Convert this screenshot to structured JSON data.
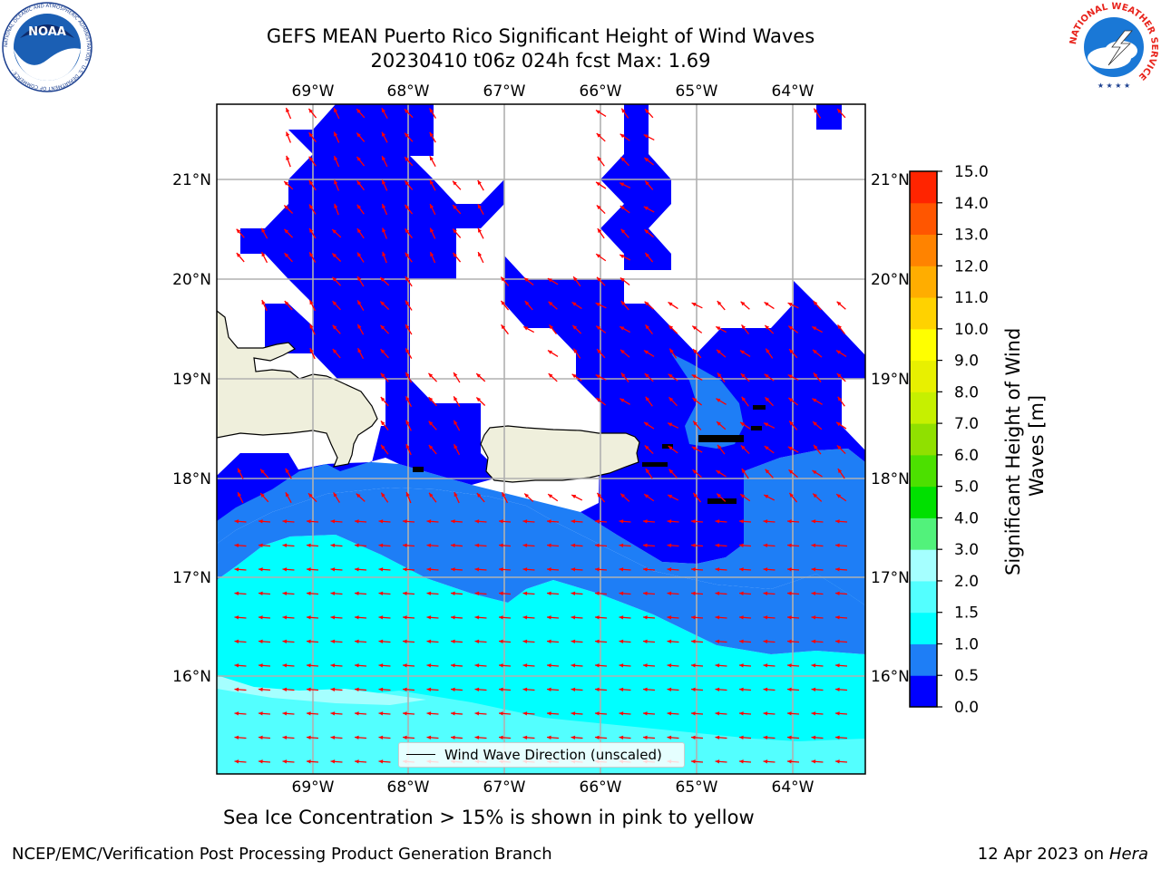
{
  "title_line1": "GEFS MEAN Puerto Rico Significant Height of Wind Waves",
  "title_line2": "20230410 t06z 024h fcst   Max: 1.69",
  "logos": {
    "noaa_text": "NOAA",
    "noaa_ring": "NATIONAL OCEANIC AND ATMOSPHERIC ADMINISTRATION · U.S. DEPARTMENT OF COMMERCE ·",
    "nws_ring": "NATIONAL WEATHER SERVICE"
  },
  "map": {
    "lon_labels": [
      "69°W",
      "68°W",
      "67°W",
      "66°W",
      "65°W",
      "64°W"
    ],
    "lat_labels": [
      "21°N",
      "20°N",
      "19°N",
      "18°N",
      "17°N",
      "16°N"
    ],
    "land_color": "#efefdc",
    "arrow_color": "#ff0000"
  },
  "colorbar": {
    "label": "Significant Height of Wind Waves [m]",
    "label_line1": "Significant Height of Wind",
    "label_line2": "Waves [m]",
    "ticks": [
      "0.0",
      "0.5",
      "1.0",
      "1.5",
      "2.0",
      "3.0",
      "4.0",
      "5.0",
      "6.0",
      "7.0",
      "8.0",
      "9.0",
      "10.0",
      "11.0",
      "12.0",
      "13.0",
      "14.0",
      "15.0"
    ],
    "colors": [
      "#0000ff",
      "#1e7ef6",
      "#00ffff",
      "#53ffff",
      "#a5ffff",
      "#52f27b",
      "#00e000",
      "#4ce000",
      "#90e000",
      "#c6f000",
      "#e8f000",
      "#ffff00",
      "#ffd200",
      "#ffad00",
      "#ff8300",
      "#ff5600",
      "#ff2400"
    ]
  },
  "legend": {
    "text": "Wind Wave Direction (unscaled)"
  },
  "bottom_note": "Sea Ice Concentration > 15% is shown in pink to yellow",
  "footer": {
    "left": "NCEP/EMC/Verification Post Processing Product Generation Branch",
    "right_prefix": "12 Apr 2023 on ",
    "right_host": "Hera"
  }
}
